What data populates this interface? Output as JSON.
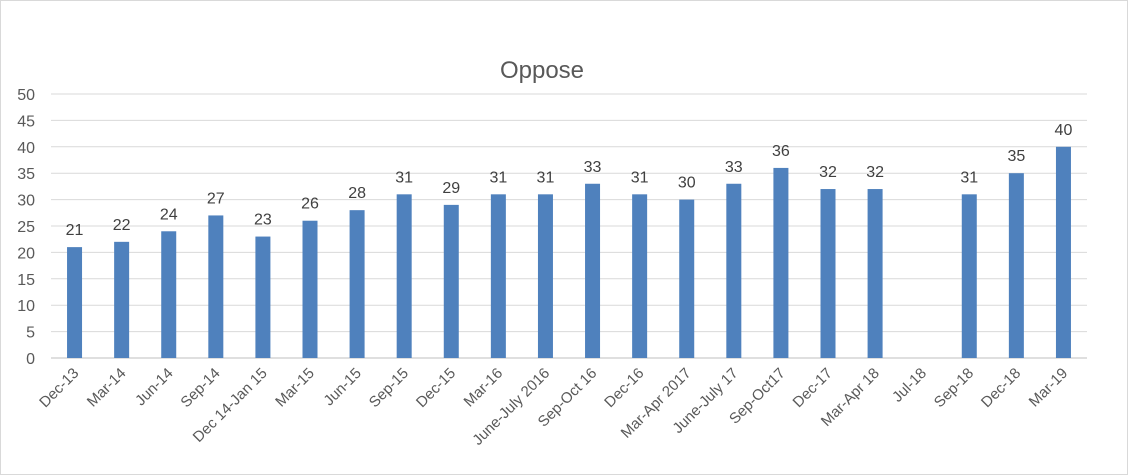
{
  "chart_data": {
    "type": "bar",
    "title": "Oppose",
    "categories": [
      "Dec-13",
      "Mar-14",
      "Jun-14",
      "Sep-14",
      "Dec 14-Jan 15",
      "Mar-15",
      "Jun-15",
      "Sep-15",
      "Dec-15",
      "Mar-16",
      "June-July 2016",
      "Sep-Oct 16",
      "Dec-16",
      "Mar-Apr 2017",
      "June-July 17",
      "Sep-Oct17",
      "Dec-17",
      "Mar-Apr 18",
      "Jul-18",
      "Sep-18",
      "Dec-18",
      "Mar-19"
    ],
    "values": [
      21,
      22,
      24,
      27,
      23,
      26,
      28,
      31,
      29,
      31,
      31,
      33,
      31,
      30,
      33,
      36,
      32,
      32,
      null,
      31,
      35,
      40
    ],
    "ylim": [
      0,
      50
    ],
    "yticks": [
      0,
      5,
      10,
      15,
      20,
      25,
      30,
      35,
      40,
      45,
      50
    ],
    "grid": true,
    "legend": "none",
    "bar_color": "#4f81bd"
  }
}
